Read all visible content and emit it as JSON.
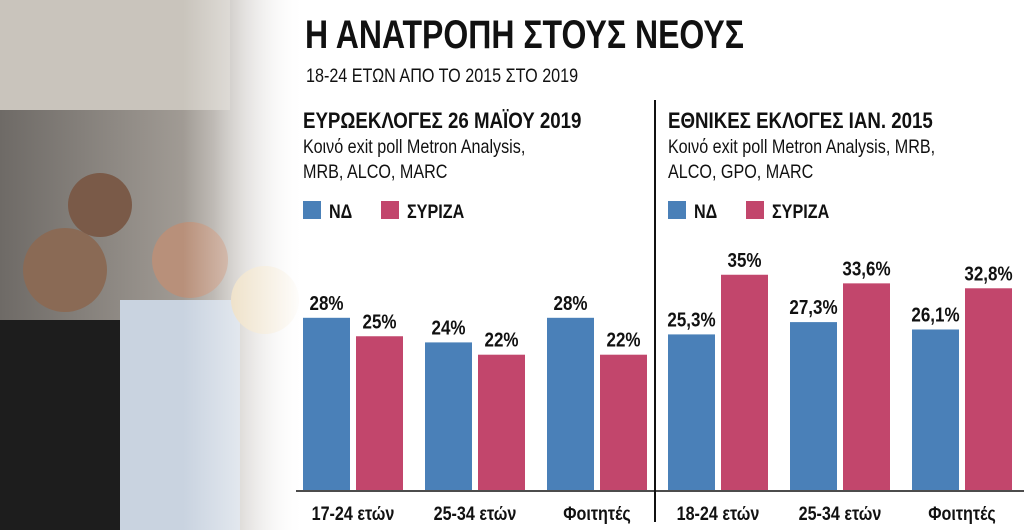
{
  "header": {
    "title": "Η ΑΝΑΤΡΟΠΗ ΣΤΟΥΣ ΝΕΟΥΣ",
    "subtitle": "18-24 ΕΤΩΝ ΑΠΟ ΤΟ 2015 ΣΤΟ 2019"
  },
  "chart_data": [
    {
      "type": "bar",
      "title": "ΕΥΡΩΕΚΛΟΓΕΣ 26 ΜΑΪΟΥ 2019",
      "subtitle": [
        "Κοινό exit poll Metron Analysis,",
        "MRB, ALCO, MARC"
      ],
      "categories": [
        "17-24 ετών",
        "25-34 ετών",
        "Φοιτητές"
      ],
      "series": [
        {
          "name": "ΝΔ",
          "color": "#4a80b8",
          "values": [
            28,
            24,
            28
          ],
          "value_labels": [
            "28%",
            "24%",
            "28%"
          ]
        },
        {
          "name": "ΣΥΡΙΖΑ",
          "color": "#c2466c",
          "values": [
            25,
            22,
            22
          ],
          "value_labels": [
            "25%",
            "22%",
            "22%"
          ]
        }
      ]
    },
    {
      "type": "bar",
      "title": "ΕΘΝΙΚΕΣ ΕΚΛΟΓΕΣ ΙΑΝ. 2015",
      "subtitle": [
        "Κοινό exit poll Metron Analysis, MRB,",
        "ALCO, GPO, MARC"
      ],
      "categories": [
        "18-24 ετών",
        "25-34 ετών",
        "Φοιτητές"
      ],
      "series": [
        {
          "name": "ΝΔ",
          "color": "#4a80b8",
          "values": [
            25.3,
            27.3,
            26.1
          ],
          "value_labels": [
            "25,3%",
            "27,3%",
            "26,1%"
          ]
        },
        {
          "name": "ΣΥΡΙΖΑ",
          "color": "#c2466c",
          "values": [
            35,
            33.6,
            32.8
          ],
          "value_labels": [
            "35%",
            "33,6%",
            "32,8%"
          ]
        }
      ]
    }
  ]
}
